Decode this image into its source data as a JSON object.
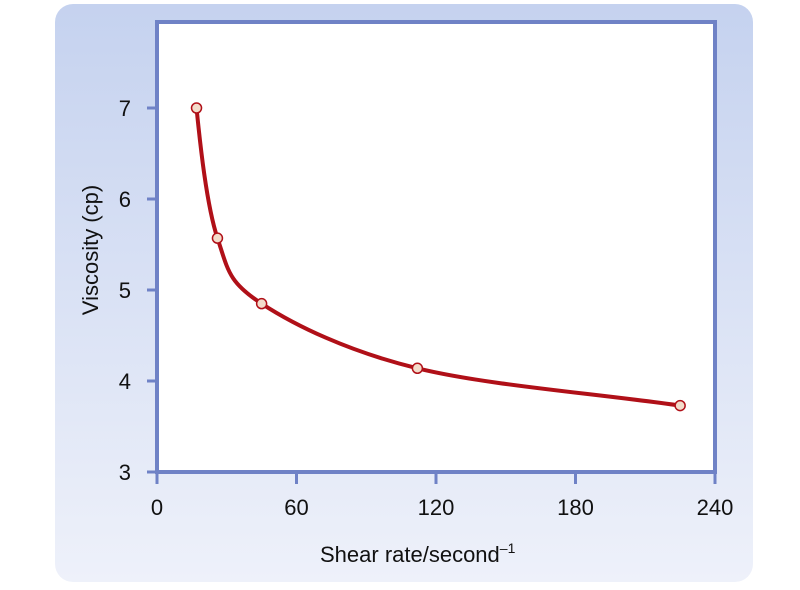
{
  "chart_data": {
    "type": "line",
    "title": "",
    "xlabel": "Shear rate/second",
    "xlabel_superscript": "–1",
    "ylabel": "Viscosity (cp)",
    "xlim": [
      0,
      240
    ],
    "ylim": [
      3,
      8
    ],
    "xticks": [
      "0",
      "60",
      "120",
      "180",
      "240"
    ],
    "yticks": [
      "3",
      "4",
      "5",
      "6",
      "7"
    ],
    "grid": false,
    "series": [
      {
        "name": "Viscosity",
        "color": "#b01018",
        "marker_fill": "#f3dccb",
        "x": [
          17,
          26,
          45,
          112,
          225
        ],
        "y": [
          7.0,
          5.57,
          4.85,
          4.14,
          3.73
        ]
      }
    ]
  },
  "colors": {
    "axis": "#6f82c6",
    "plot_bg": "#ffffff"
  }
}
